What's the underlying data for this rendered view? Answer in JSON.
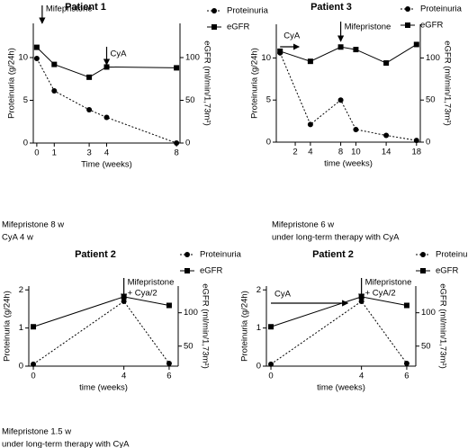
{
  "chart_data": [
    {
      "type": "line",
      "title": "Patient 1",
      "x": [
        0,
        1,
        3,
        4,
        8
      ],
      "xlim": [
        -0.2,
        8.2
      ],
      "xticks": [
        0,
        1,
        3,
        4,
        8
      ],
      "ylim": [
        0,
        14
      ],
      "yticks": [
        0,
        5,
        10
      ],
      "y2lim": [
        0,
        140
      ],
      "y2ticks": [
        0,
        50,
        100
      ],
      "xlabel": "Time (weeks)",
      "ylabel": "Proteinuria (g/24h)",
      "y2label": "eGFR (ml/min/1,73m²)",
      "series": [
        {
          "name": "Proteinuria",
          "color": "#000000",
          "marker": "circle",
          "dashed": true,
          "values": [
            9.9,
            6.1,
            3.9,
            3.0,
            0
          ]
        },
        {
          "name": "eGFR",
          "color": "#000000",
          "marker": "square",
          "dashed": false,
          "axis": "y2",
          "values": [
            112,
            92,
            77,
            89,
            88
          ]
        }
      ],
      "annotations": [
        {
          "text": [
            "Mifepristone"
          ],
          "x": 0,
          "arrow": "down"
        },
        {
          "text": [
            "CyA"
          ],
          "x": 4,
          "arrow": "down"
        }
      ],
      "note": [
        "Mifepristone 8 w",
        "CyA 4 w"
      ]
    },
    {
      "type": "line",
      "title": "Patient 3",
      "x": [
        0,
        4,
        8,
        10,
        14,
        18
      ],
      "xlim": [
        -0.5,
        18.5
      ],
      "xticks": [
        2,
        4,
        8,
        10,
        14,
        18
      ],
      "ylim": [
        0,
        14
      ],
      "yticks": [
        0,
        5,
        10
      ],
      "y2lim": [
        0,
        140
      ],
      "y2ticks": [
        0,
        50,
        100
      ],
      "xlabel": "time (weeks)",
      "ylabel": "Proteinuria (g/24h)",
      "y2label": "eGFR (ml/min/1,73m²)",
      "series": [
        {
          "name": "Proteinuria",
          "color": "#000000",
          "marker": "circle",
          "dashed": true,
          "values": [
            10.6,
            2.1,
            5,
            1.5,
            0.8,
            0.2
          ]
        },
        {
          "name": "eGFR",
          "color": "#000000",
          "marker": "square",
          "dashed": false,
          "axis": "y2",
          "values": [
            108,
            96,
            113,
            110,
            94,
            116
          ]
        }
      ],
      "annotations": [
        {
          "text": [
            "CyA"
          ],
          "x": [
            0,
            2.5
          ],
          "arrow": "right"
        },
        {
          "text": [
            "Mifepristone"
          ],
          "x": 8,
          "arrow": "down"
        }
      ],
      "note": [
        "Mifepristone 6 w",
        "under long-term therapy with CyA"
      ]
    },
    {
      "type": "line",
      "title": "Patient 2",
      "x": [
        0,
        4,
        6
      ],
      "xlim": [
        -0.2,
        6.4
      ],
      "xticks": [
        0,
        4,
        6
      ],
      "ylim": [
        0,
        2.1
      ],
      "yticks": [
        0,
        1,
        2
      ],
      "y2lim": [
        20,
        140
      ],
      "y2ticks": [
        50,
        100
      ],
      "xlabel": "time (weeks)",
      "ylabel": "Proteinuria (g/24h)",
      "y2label": "eGFR (ml/min/1,73m²)",
      "series": [
        {
          "name": "Proteinuria",
          "color": "#000000",
          "marker": "circle",
          "dashed": true,
          "values": [
            0.05,
            1.7,
            0.07
          ]
        },
        {
          "name": "eGFR",
          "color": "#000000",
          "marker": "square",
          "dashed": false,
          "axis": "y2",
          "values": [
            79,
            124,
            111
          ]
        }
      ],
      "annotations": [
        {
          "text": [
            "Mifepristone",
            "+ Cya/2"
          ],
          "x": 4,
          "arrow": "down"
        }
      ],
      "note": [
        "Mifepristone 1.5 w",
        "under long-term therapy with CyA"
      ]
    },
    {
      "type": "line",
      "title": "Patient 2",
      "x": [
        0,
        4,
        6
      ],
      "xlim": [
        -0.2,
        6.4
      ],
      "xticks": [
        0,
        4,
        6
      ],
      "ylim": [
        0,
        2.1
      ],
      "yticks": [
        0,
        1,
        2
      ],
      "y2lim": [
        20,
        140
      ],
      "y2ticks": [
        50,
        100
      ],
      "xlabel": "time (weeks)",
      "ylabel": "Proteinuria (g/24h)",
      "y2label": "eGFR (ml/min/1,73m²)",
      "series": [
        {
          "name": "Proteinuria",
          "color": "#000000",
          "marker": "circle",
          "dashed": true,
          "values": [
            0.05,
            1.7,
            0.07
          ]
        },
        {
          "name": "eGFR",
          "color": "#000000",
          "marker": "square",
          "dashed": false,
          "axis": "y2",
          "values": [
            79,
            124,
            111
          ]
        }
      ],
      "annotations": [
        {
          "text": [
            "CyA"
          ],
          "x": [
            0,
            3.4
          ],
          "arrow": "right"
        },
        {
          "text": [
            "Mifepristone",
            "+ CyA/2"
          ],
          "x": 4,
          "arrow": "down"
        }
      ]
    }
  ]
}
